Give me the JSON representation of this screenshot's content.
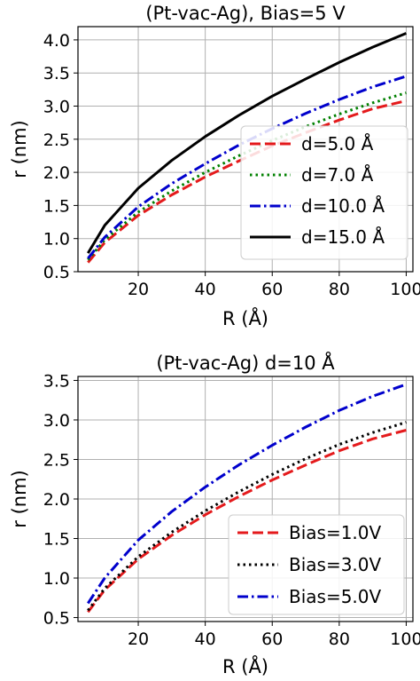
{
  "chart_data": [
    {
      "type": "line",
      "title": "(Pt-vac-Ag), Bias=5 V",
      "xlabel": "R (Å)",
      "ylabel": "r (nm)",
      "xlim": [
        2,
        102
      ],
      "ylim": [
        0.5,
        4.2
      ],
      "xticks": [
        20,
        40,
        60,
        80,
        100
      ],
      "yticks": [
        0.5,
        1.0,
        1.5,
        2.0,
        2.5,
        3.0,
        3.5,
        4.0
      ],
      "xtick_labels": [
        "20",
        "40",
        "60",
        "80",
        "100"
      ],
      "ytick_labels": [
        "0.5",
        "1.0",
        "1.5",
        "2.0",
        "2.5",
        "3.0",
        "3.5",
        "4.0"
      ],
      "grid": true,
      "legend_position": "center-right",
      "x": [
        5,
        10,
        20,
        30,
        40,
        50,
        60,
        70,
        80,
        90,
        100
      ],
      "series": [
        {
          "name": "d=5.0 Å",
          "color": "#e41a1c",
          "style": "dashed",
          "values": [
            0.64,
            0.94,
            1.35,
            1.66,
            1.93,
            2.17,
            2.4,
            2.6,
            2.79,
            2.96,
            3.08
          ]
        },
        {
          "name": "d=7.0 Å",
          "color": "#008000",
          "style": "dotted",
          "values": [
            0.68,
            0.98,
            1.4,
            1.72,
            2.0,
            2.25,
            2.48,
            2.69,
            2.88,
            3.05,
            3.2
          ]
        },
        {
          "name": "d=10.0 Å",
          "color": "#0000cc",
          "style": "dashdot",
          "values": [
            0.7,
            1.02,
            1.48,
            1.83,
            2.13,
            2.41,
            2.66,
            2.89,
            3.1,
            3.29,
            3.45
          ]
        },
        {
          "name": "d=15.0 Å",
          "color": "#000000",
          "style": "solid",
          "values": [
            0.78,
            1.2,
            1.76,
            2.18,
            2.54,
            2.86,
            3.15,
            3.41,
            3.66,
            3.89,
            4.1
          ]
        }
      ]
    },
    {
      "type": "line",
      "title": "(Pt-vac-Ag) d=10 Å",
      "xlabel": "R (Å)",
      "ylabel": "r (nm)",
      "xlim": [
        2,
        102
      ],
      "ylim": [
        0.45,
        3.55
      ],
      "xticks": [
        20,
        40,
        60,
        80,
        100
      ],
      "yticks": [
        0.5,
        1.0,
        1.5,
        2.0,
        2.5,
        3.0,
        3.5
      ],
      "xtick_labels": [
        "20",
        "40",
        "60",
        "80",
        "100"
      ],
      "ytick_labels": [
        "0.5",
        "1.0",
        "1.5",
        "2.0",
        "2.5",
        "3.0",
        "3.5"
      ],
      "grid": true,
      "legend_position": "bottom-right",
      "x": [
        5,
        10,
        20,
        30,
        40,
        50,
        60,
        70,
        80,
        90,
        100
      ],
      "series": [
        {
          "name": "Bias=1.0V",
          "color": "#e41a1c",
          "style": "dashed",
          "values": [
            0.57,
            0.85,
            1.24,
            1.54,
            1.8,
            2.03,
            2.24,
            2.43,
            2.61,
            2.76,
            2.87
          ]
        },
        {
          "name": "Bias=3.0V",
          "color": "#000000",
          "style": "dotted",
          "values": [
            0.59,
            0.87,
            1.27,
            1.58,
            1.85,
            2.09,
            2.31,
            2.51,
            2.69,
            2.84,
            2.97
          ]
        },
        {
          "name": "Bias=5.0V",
          "color": "#0000cc",
          "style": "dashdot",
          "values": [
            0.68,
            1.0,
            1.48,
            1.84,
            2.15,
            2.43,
            2.68,
            2.91,
            3.12,
            3.3,
            3.45
          ]
        }
      ]
    }
  ]
}
